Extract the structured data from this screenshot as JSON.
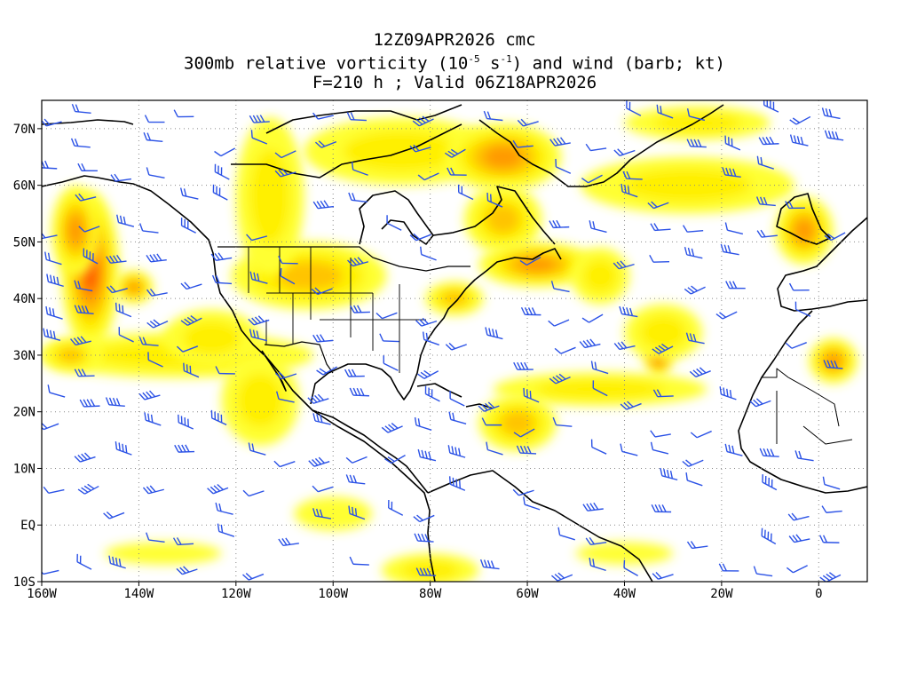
{
  "title": {
    "line1": "12Z09APR2026 cmc",
    "line2_before": "300mb relative vorticity (10",
    "line2_exp1": "-5",
    "line2_mid": " s",
    "line2_exp2": "-1",
    "line2_after": ") and wind (barb; kt)",
    "line3": "F=210 h ; Valid 06Z18APR2026"
  },
  "map": {
    "lon_range": [
      -160,
      10
    ],
    "lat_range": [
      -10,
      75
    ],
    "lon_ticks": [
      {
        "value": -160,
        "label": "160W"
      },
      {
        "value": -140,
        "label": "140W"
      },
      {
        "value": -120,
        "label": "120W"
      },
      {
        "value": -100,
        "label": "100W"
      },
      {
        "value": -80,
        "label": "80W"
      },
      {
        "value": -60,
        "label": "60W"
      },
      {
        "value": -40,
        "label": "40W"
      },
      {
        "value": -20,
        "label": "20W"
      },
      {
        "value": 0,
        "label": "0"
      }
    ],
    "lat_ticks": [
      {
        "value": 70,
        "label": "70N"
      },
      {
        "value": 60,
        "label": "60N"
      },
      {
        "value": 50,
        "label": "50N"
      },
      {
        "value": 40,
        "label": "40N"
      },
      {
        "value": 30,
        "label": "30N"
      },
      {
        "value": 20,
        "label": "20N"
      },
      {
        "value": 10,
        "label": "10N"
      },
      {
        "value": 0,
        "label": "EQ"
      },
      {
        "value": -10,
        "label": "10S"
      }
    ],
    "grid": true,
    "colors": {
      "level1": "#ffff33",
      "level2": "#fff000",
      "level3": "#ffc400",
      "level4": "#ff9a00",
      "level5": "#ff5a00",
      "level6": "#e8200a",
      "barb": "#2b52e6",
      "coast": "#000000",
      "grid": "#888888"
    },
    "vorticity_features": [
      {
        "lon": -150,
        "lat": 45,
        "rlon": 6,
        "rlat": 14,
        "level": 5
      },
      {
        "lon": -153,
        "lat": 52,
        "rlon": 5,
        "rlat": 8,
        "level": 4
      },
      {
        "lon": -141,
        "lat": 42,
        "rlon": 4,
        "rlat": 3,
        "level": 4
      },
      {
        "lon": -132,
        "lat": 30,
        "rlon": 28,
        "rlat": 4,
        "level": 2
      },
      {
        "lon": -154,
        "lat": 30,
        "rlon": 6,
        "rlat": 3,
        "level": 3
      },
      {
        "lon": -105,
        "lat": 44,
        "rlon": 16,
        "rlat": 6,
        "level": 3
      },
      {
        "lon": -113,
        "lat": 58,
        "rlon": 7,
        "rlat": 14,
        "level": 2
      },
      {
        "lon": -125,
        "lat": 33,
        "rlon": 10,
        "rlat": 5,
        "level": 2
      },
      {
        "lon": -86,
        "lat": 66,
        "rlon": 20,
        "rlat": 6,
        "level": 2
      },
      {
        "lon": -65,
        "lat": 65,
        "rlon": 12,
        "rlat": 6,
        "level": 4
      },
      {
        "lon": -65,
        "lat": 54,
        "rlon": 8,
        "rlat": 6,
        "level": 3
      },
      {
        "lon": -58,
        "lat": 46,
        "rlon": 12,
        "rlat": 4,
        "level": 4
      },
      {
        "lon": -45,
        "lat": 44,
        "rlon": 6,
        "rlat": 5,
        "level": 2
      },
      {
        "lon": -27,
        "lat": 60,
        "rlon": 22,
        "rlat": 5,
        "level": 2
      },
      {
        "lon": -3,
        "lat": 52,
        "rlon": 6,
        "rlat": 6,
        "level": 4
      },
      {
        "lon": -25,
        "lat": 71,
        "rlon": 15,
        "rlat": 3,
        "level": 2
      },
      {
        "lon": -33,
        "lat": 30,
        "rlon": 3,
        "rlat": 4,
        "level": 6
      },
      {
        "lon": -32,
        "lat": 34,
        "rlon": 8,
        "rlat": 5,
        "level": 2
      },
      {
        "lon": -45,
        "lat": 24,
        "rlon": 22,
        "rlat": 3,
        "level": 2
      },
      {
        "lon": -62,
        "lat": 18,
        "rlon": 8,
        "rlat": 5,
        "level": 3
      },
      {
        "lon": 3,
        "lat": 29,
        "rlon": 5,
        "rlat": 4,
        "level": 4
      },
      {
        "lon": -75,
        "lat": 40,
        "rlon": 6,
        "rlat": 3,
        "level": 3
      },
      {
        "lon": -115,
        "lat": 22,
        "rlon": 8,
        "rlat": 8,
        "level": 2
      },
      {
        "lon": -80,
        "lat": -8,
        "rlon": 10,
        "rlat": 3,
        "level": 2
      },
      {
        "lon": -135,
        "lat": -5,
        "rlon": 12,
        "rlat": 2,
        "level": 1
      },
      {
        "lon": -100,
        "lat": 2,
        "rlon": 8,
        "rlat": 3,
        "level": 1
      },
      {
        "lon": -40,
        "lat": -5,
        "rlon": 10,
        "rlat": 2,
        "level": 1
      }
    ]
  }
}
